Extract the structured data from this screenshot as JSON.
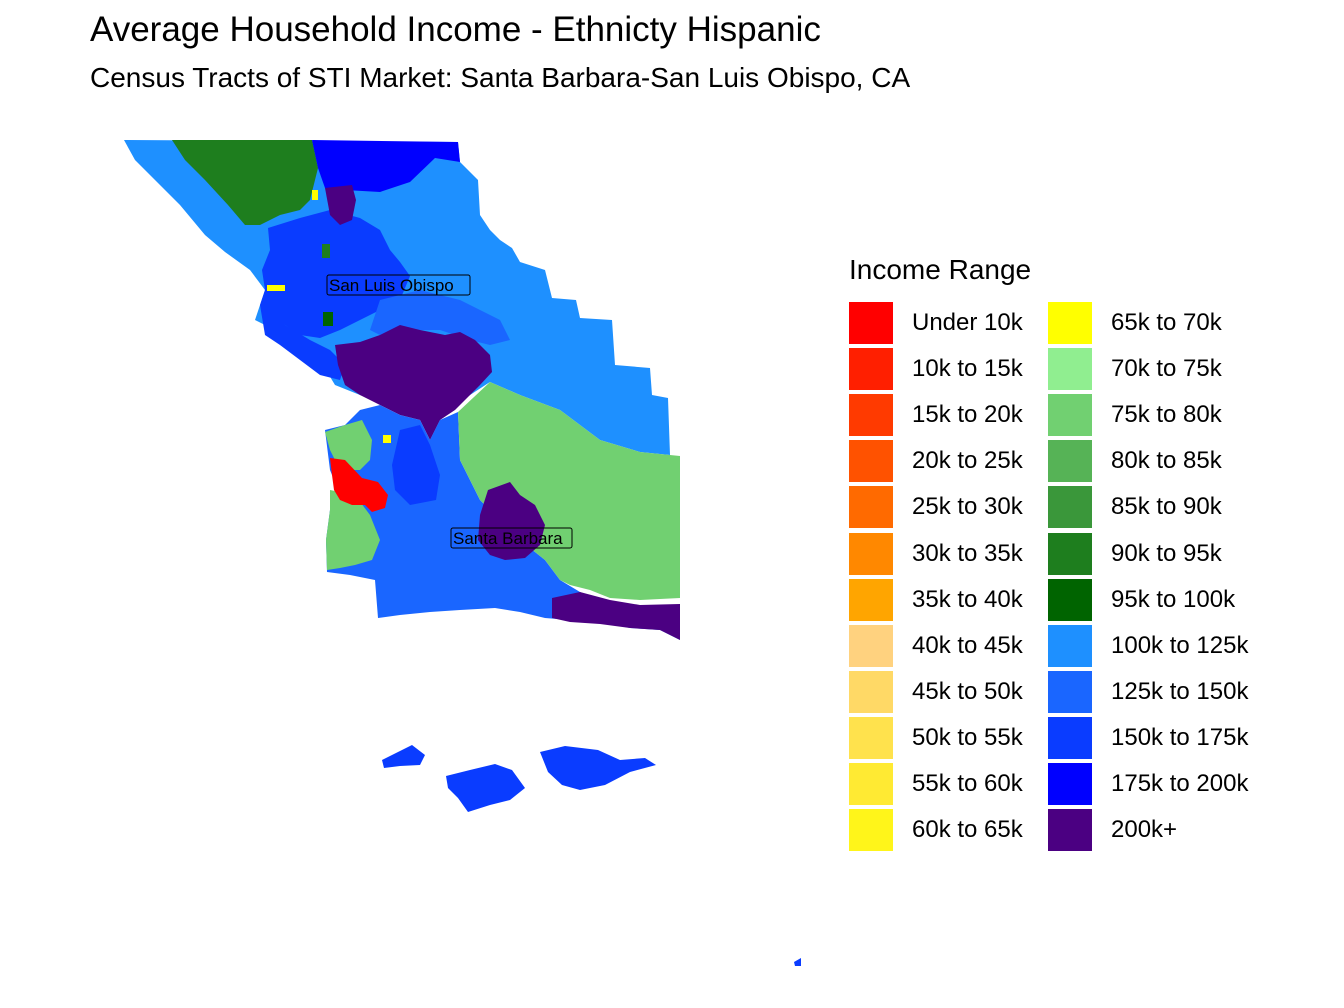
{
  "title": "Average Household Income - Ethnicty Hispanic",
  "subtitle": "Census Tracts of STI Market: Santa Barbara-San Luis Obispo, CA",
  "map": {
    "cities": [
      "San Luis Obispo",
      "Santa Barbara"
    ]
  },
  "legend": {
    "title": "Income Range",
    "items": [
      {
        "label": "Under 10k",
        "color": "#FF0000"
      },
      {
        "label": "10k to 15k",
        "color": "#FF1F00"
      },
      {
        "label": "15k to 20k",
        "color": "#FF3A00"
      },
      {
        "label": "20k to 25k",
        "color": "#FF5200"
      },
      {
        "label": "25k to 30k",
        "color": "#FF6A00"
      },
      {
        "label": "30k to 35k",
        "color": "#FF8800"
      },
      {
        "label": "35k to 40k",
        "color": "#FFA500"
      },
      {
        "label": "40k to 45k",
        "color": "#FFD27F"
      },
      {
        "label": "45k to 50k",
        "color": "#FFD966"
      },
      {
        "label": "50k to 55k",
        "color": "#FFE24D"
      },
      {
        "label": "55k to 60k",
        "color": "#FFEA33"
      },
      {
        "label": "60k to 65k",
        "color": "#FFF51A"
      },
      {
        "label": "65k to 70k",
        "color": "#FFFF00"
      },
      {
        "label": "70k to 75k",
        "color": "#90EE90"
      },
      {
        "label": "75k to 80k",
        "color": "#71D071"
      },
      {
        "label": "80k to 85k",
        "color": "#56B356"
      },
      {
        "label": "85k to 90k",
        "color": "#3A973A"
      },
      {
        "label": "90k to 95k",
        "color": "#1E7E1E"
      },
      {
        "label": "95k to 100k",
        "color": "#006400"
      },
      {
        "label": "100k to 125k",
        "color": "#1E90FF"
      },
      {
        "label": "125k to 150k",
        "color": "#1A66FF"
      },
      {
        "label": "150k to 175k",
        "color": "#0A3CFF"
      },
      {
        "label": "175k to 200k",
        "color": "#0000FF"
      },
      {
        "label": "200k+",
        "color": "#4B0082"
      }
    ]
  }
}
